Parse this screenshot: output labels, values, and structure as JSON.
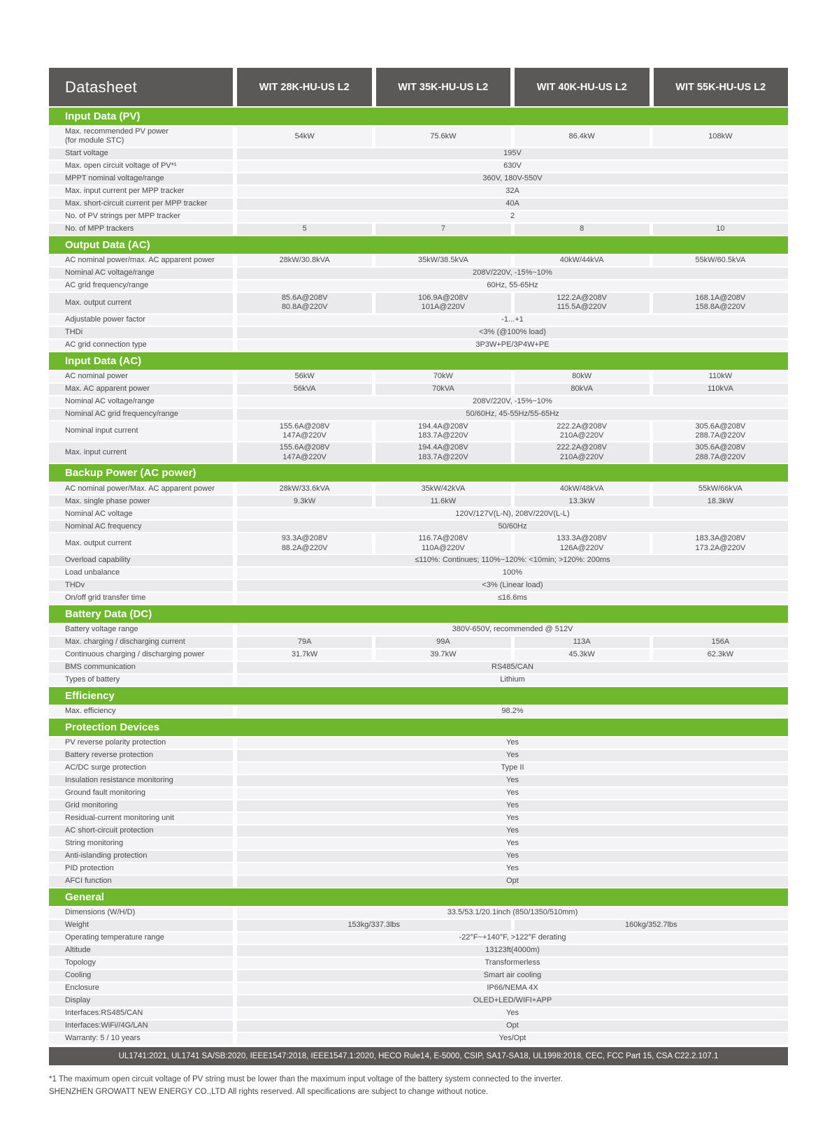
{
  "colors": {
    "accent_green": "#6fb82d",
    "header_dark": "#5b5858",
    "row_light": "#f4f3f5",
    "row_dark": "#eae9eb",
    "text": "#474545"
  },
  "header": {
    "title": "Datasheet",
    "models": [
      "WIT 28K-HU-US L2",
      "WIT 35K-HU-US L2",
      "WIT 40K-HU-US L2",
      "WIT 55K-HU-US L2"
    ]
  },
  "sections": [
    {
      "title": "Input Data (PV)",
      "rows": [
        {
          "label": "Max. recommended PV power\n(for module STC)",
          "values": [
            "54kW",
            "75.6kW",
            "86.4kW",
            "108kW"
          ]
        },
        {
          "label": "Start voltage",
          "span": "195V"
        },
        {
          "label": "Max. open circuit voltage of PV*¹",
          "span": "630V"
        },
        {
          "label": "MPPT nominal voltage/range",
          "span": "360V, 180V-550V"
        },
        {
          "label": "Max. input current per MPP tracker",
          "span": "32A"
        },
        {
          "label": "Max. short-circuit current per MPP tracker",
          "span": "40A"
        },
        {
          "label": "No. of PV strings per MPP tracker",
          "span": "2"
        },
        {
          "label": "No. of MPP trackers",
          "values": [
            "5",
            "7",
            "8",
            "10"
          ]
        }
      ]
    },
    {
      "title": "Output Data (AC)",
      "rows": [
        {
          "label": "AC nominal power/max. AC apparent power",
          "values": [
            "28kW/30.8kVA",
            "35kW/38.5kVA",
            "40kW/44kVA",
            "55kW/60.5kVA"
          ]
        },
        {
          "label": "Nominal AC voltage/range",
          "span": "208V/220V, -15%~10%"
        },
        {
          "label": "AC grid frequency/range",
          "span": "60Hz, 55-65Hz"
        },
        {
          "label": "Max. output current",
          "values": [
            "85.6A@208V\n80.8A@220V",
            "106.9A@208V\n101A@220V",
            "122.2A@208V\n115.5A@220V",
            "168.1A@208V\n158.8A@220V"
          ]
        },
        {
          "label": "Adjustable power factor",
          "span": "-1...+1"
        },
        {
          "label": "THDi",
          "span": "<3% (@100% load)"
        },
        {
          "label": "AC grid connection type",
          "span": "3P3W+PE/3P4W+PE"
        }
      ]
    },
    {
      "title": "Input Data (AC)",
      "rows": [
        {
          "label": "AC nominal power",
          "values": [
            "56kW",
            "70kW",
            "80kW",
            "110kW"
          ]
        },
        {
          "label": "Max. AC apparent power",
          "values": [
            "56kVA",
            "70kVA",
            "80kVA",
            "110kVA"
          ]
        },
        {
          "label": "Nominal AC voltage/range",
          "span": "208V/220V, -15%~10%"
        },
        {
          "label": "Nominal AC grid frequency/range",
          "span": "50/60Hz, 45-55Hz/55-65Hz"
        },
        {
          "label": "Nominal input current",
          "values": [
            "155.6A@208V\n147A@220V",
            "194.4A@208V\n183.7A@220V",
            "222.2A@208V\n210A@220V",
            "305.6A@208V\n288.7A@220V"
          ]
        },
        {
          "label": "Max. input current",
          "values": [
            "155.6A@208V\n147A@220V",
            "194.4A@208V\n183.7A@220V",
            "222.2A@208V\n210A@220V",
            "305.6A@208V\n288.7A@220V"
          ]
        }
      ]
    },
    {
      "title": "Backup Power (AC power)",
      "rows": [
        {
          "label": "AC nominal power/Max. AC apparent power",
          "values": [
            "28kW/33.6kVA",
            "35kW/42kVA",
            "40kW/48kVA",
            "55kW/66kVA"
          ]
        },
        {
          "label": "Max. single phase power",
          "values": [
            "9.3kW",
            "11.6kW",
            "13.3kW",
            "18.3kW"
          ]
        },
        {
          "label": "Nominal AC voltage",
          "span": "120V/127V(L-N), 208V/220V(L-L)"
        },
        {
          "label": "Nominal AC frequency",
          "span": "50/60Hz"
        },
        {
          "label": "Max. output current",
          "values": [
            "93.3A@208V\n88.2A@220V",
            "116.7A@208V\n110A@220V",
            "133.3A@208V\n126A@220V",
            "183.3A@208V\n173.2A@220V"
          ]
        },
        {
          "label": "Overload capability",
          "span": "≤110%: Continues;  110%~120%: <10min;  >120%: 200ms"
        },
        {
          "label": "Load unbalance",
          "span": "100%"
        },
        {
          "label": "THDv",
          "span": "<3%  (Linear load)"
        },
        {
          "label": "On/off grid transfer time",
          "span": "≤16.6ms"
        }
      ]
    },
    {
      "title": "Battery Data (DC)",
      "rows": [
        {
          "label": "Battery voltage range",
          "span": "380V-650V, recommended @ 512V"
        },
        {
          "label": "Max. charging / discharging current",
          "values": [
            "79A",
            "99A",
            "113A",
            "156A"
          ]
        },
        {
          "label": "Continuous charging / discharging power",
          "values": [
            "31.7kW",
            "39.7kW",
            "45.3kW",
            "62.3kW"
          ]
        },
        {
          "label": "BMS communication",
          "span": "RS485/CAN"
        },
        {
          "label": "Types of battery",
          "span": "Lithium"
        }
      ]
    },
    {
      "title": "Efficiency",
      "rows": [
        {
          "label": "Max. efficiency",
          "span": "98.2%"
        }
      ]
    },
    {
      "title": "Protection Devices",
      "rows": [
        {
          "label": "PV reverse polarity protection",
          "span": "Yes"
        },
        {
          "label": "Battery reverse protection",
          "span": "Yes"
        },
        {
          "label": "AC/DC surge protection",
          "span": "Type II"
        },
        {
          "label": "Insulation resistance monitoring",
          "span": "Yes"
        },
        {
          "label": "Ground fault monitoring",
          "span": "Yes"
        },
        {
          "label": "Grid monitoring",
          "span": "Yes"
        },
        {
          "label": "Residual-current monitoring unit",
          "span": "Yes"
        },
        {
          "label": "AC short-circuit protection",
          "span": "Yes"
        },
        {
          "label": "String monitoring",
          "span": "Yes"
        },
        {
          "label": "Anti-islanding protection",
          "span": "Yes"
        },
        {
          "label": "PID protection",
          "span": "Yes"
        },
        {
          "label": "AFCI function",
          "span": "Opt"
        }
      ]
    },
    {
      "title": "General",
      "rows": [
        {
          "label": "Dimensions (W/H/D)",
          "span": "33.5/53.1/20.1inch (850/1350/510mm)"
        },
        {
          "label": "Weight",
          "values2": [
            "153kg/337.3lbs",
            "160kg/352.7lbs"
          ]
        },
        {
          "label": "Operating temperature range",
          "span": "-22°F~+140°F, >122°F derating"
        },
        {
          "label": "Altitude",
          "span": "13123ft(4000m)"
        },
        {
          "label": "Topology",
          "span": "Transformerless"
        },
        {
          "label": "Cooling",
          "span": "Smart air cooling"
        },
        {
          "label": "Enclosure",
          "span": "IP66/NEMA 4X"
        },
        {
          "label": "Display",
          "span": "OLED+LED/WIFI+APP"
        },
        {
          "label": "Interfaces:RS485/CAN",
          "span": "Yes"
        },
        {
          "label": "Interfaces:WiFi//4G/LAN",
          "span": "Opt"
        },
        {
          "label": "Warranty: 5 / 10 years",
          "span": "Yes/Opt"
        }
      ]
    }
  ],
  "footer": {
    "certifications": "UL1741:2021, UL1741 SA/SB:2020, IEEE1547:2018, IEEE1547.1:2020, HECO Rule14, E-5000, CSIP, SA17-SA18, UL1998:2018, CEC, FCC Part 15, CSA C22.2.107.1",
    "note1": "*1  The maximum open circuit voltage of PV string must be lower than the maximum input voltage of the battery system connected to the inverter.",
    "note2": "SHENZHEN GROWATT NEW ENERGY CO.,LTD All rights reserved. All specifications are subject to change without notice."
  }
}
